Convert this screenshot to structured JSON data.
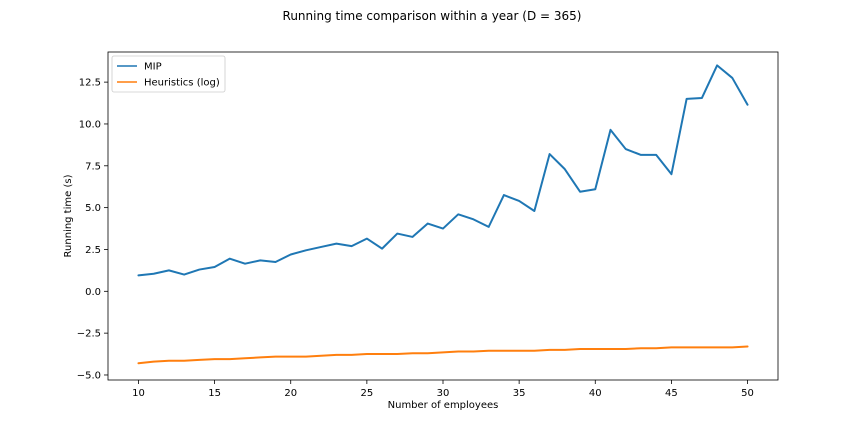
{
  "chart_data": {
    "type": "line",
    "title": "Running time comparison within a year (D = 365)",
    "xlabel": "Number of employees",
    "ylabel": "Running time (s)",
    "xlim": [
      8,
      52
    ],
    "ylim": [
      -5.3,
      14.3
    ],
    "xticks": [
      10,
      15,
      20,
      25,
      30,
      35,
      40,
      45,
      50
    ],
    "yticks": [
      -5.0,
      -2.5,
      0.0,
      2.5,
      5.0,
      7.5,
      10.0,
      12.5
    ],
    "yticklabels": [
      "−5.0",
      "−2.5",
      "0.0",
      "2.5",
      "5.0",
      "7.5",
      "10.0",
      "12.5"
    ],
    "grid": false,
    "legend_position": "upper-left",
    "x": [
      10,
      11,
      12,
      13,
      14,
      15,
      16,
      17,
      18,
      19,
      20,
      21,
      22,
      23,
      24,
      25,
      26,
      27,
      28,
      29,
      30,
      31,
      32,
      33,
      34,
      35,
      36,
      37,
      38,
      39,
      40,
      41,
      42,
      43,
      44,
      45,
      46,
      47,
      48,
      49,
      50
    ],
    "series": [
      {
        "name": "MIP",
        "color": "#1f77b4",
        "values": [
          0.95,
          1.05,
          1.25,
          1.0,
          1.3,
          1.45,
          1.95,
          1.65,
          1.85,
          1.75,
          2.2,
          2.45,
          2.65,
          2.85,
          2.7,
          3.15,
          2.55,
          3.45,
          3.25,
          4.05,
          3.75,
          4.6,
          4.3,
          3.85,
          5.75,
          5.4,
          4.8,
          8.2,
          7.3,
          5.95,
          6.1,
          9.65,
          8.5,
          8.15,
          8.15,
          7.0,
          11.5,
          11.55,
          13.5,
          12.75,
          11.15
        ]
      },
      {
        "name": "Heuristics (log)",
        "color": "#ff7f0e",
        "values": [
          -4.3,
          -4.2,
          -4.15,
          -4.15,
          -4.1,
          -4.05,
          -4.05,
          -4.0,
          -3.95,
          -3.9,
          -3.9,
          -3.9,
          -3.85,
          -3.8,
          -3.8,
          -3.75,
          -3.75,
          -3.75,
          -3.7,
          -3.7,
          -3.65,
          -3.6,
          -3.6,
          -3.55,
          -3.55,
          -3.55,
          -3.55,
          -3.5,
          -3.5,
          -3.45,
          -3.45,
          -3.45,
          -3.45,
          -3.4,
          -3.4,
          -3.35,
          -3.35,
          -3.35,
          -3.35,
          -3.35,
          -3.3
        ]
      }
    ]
  }
}
